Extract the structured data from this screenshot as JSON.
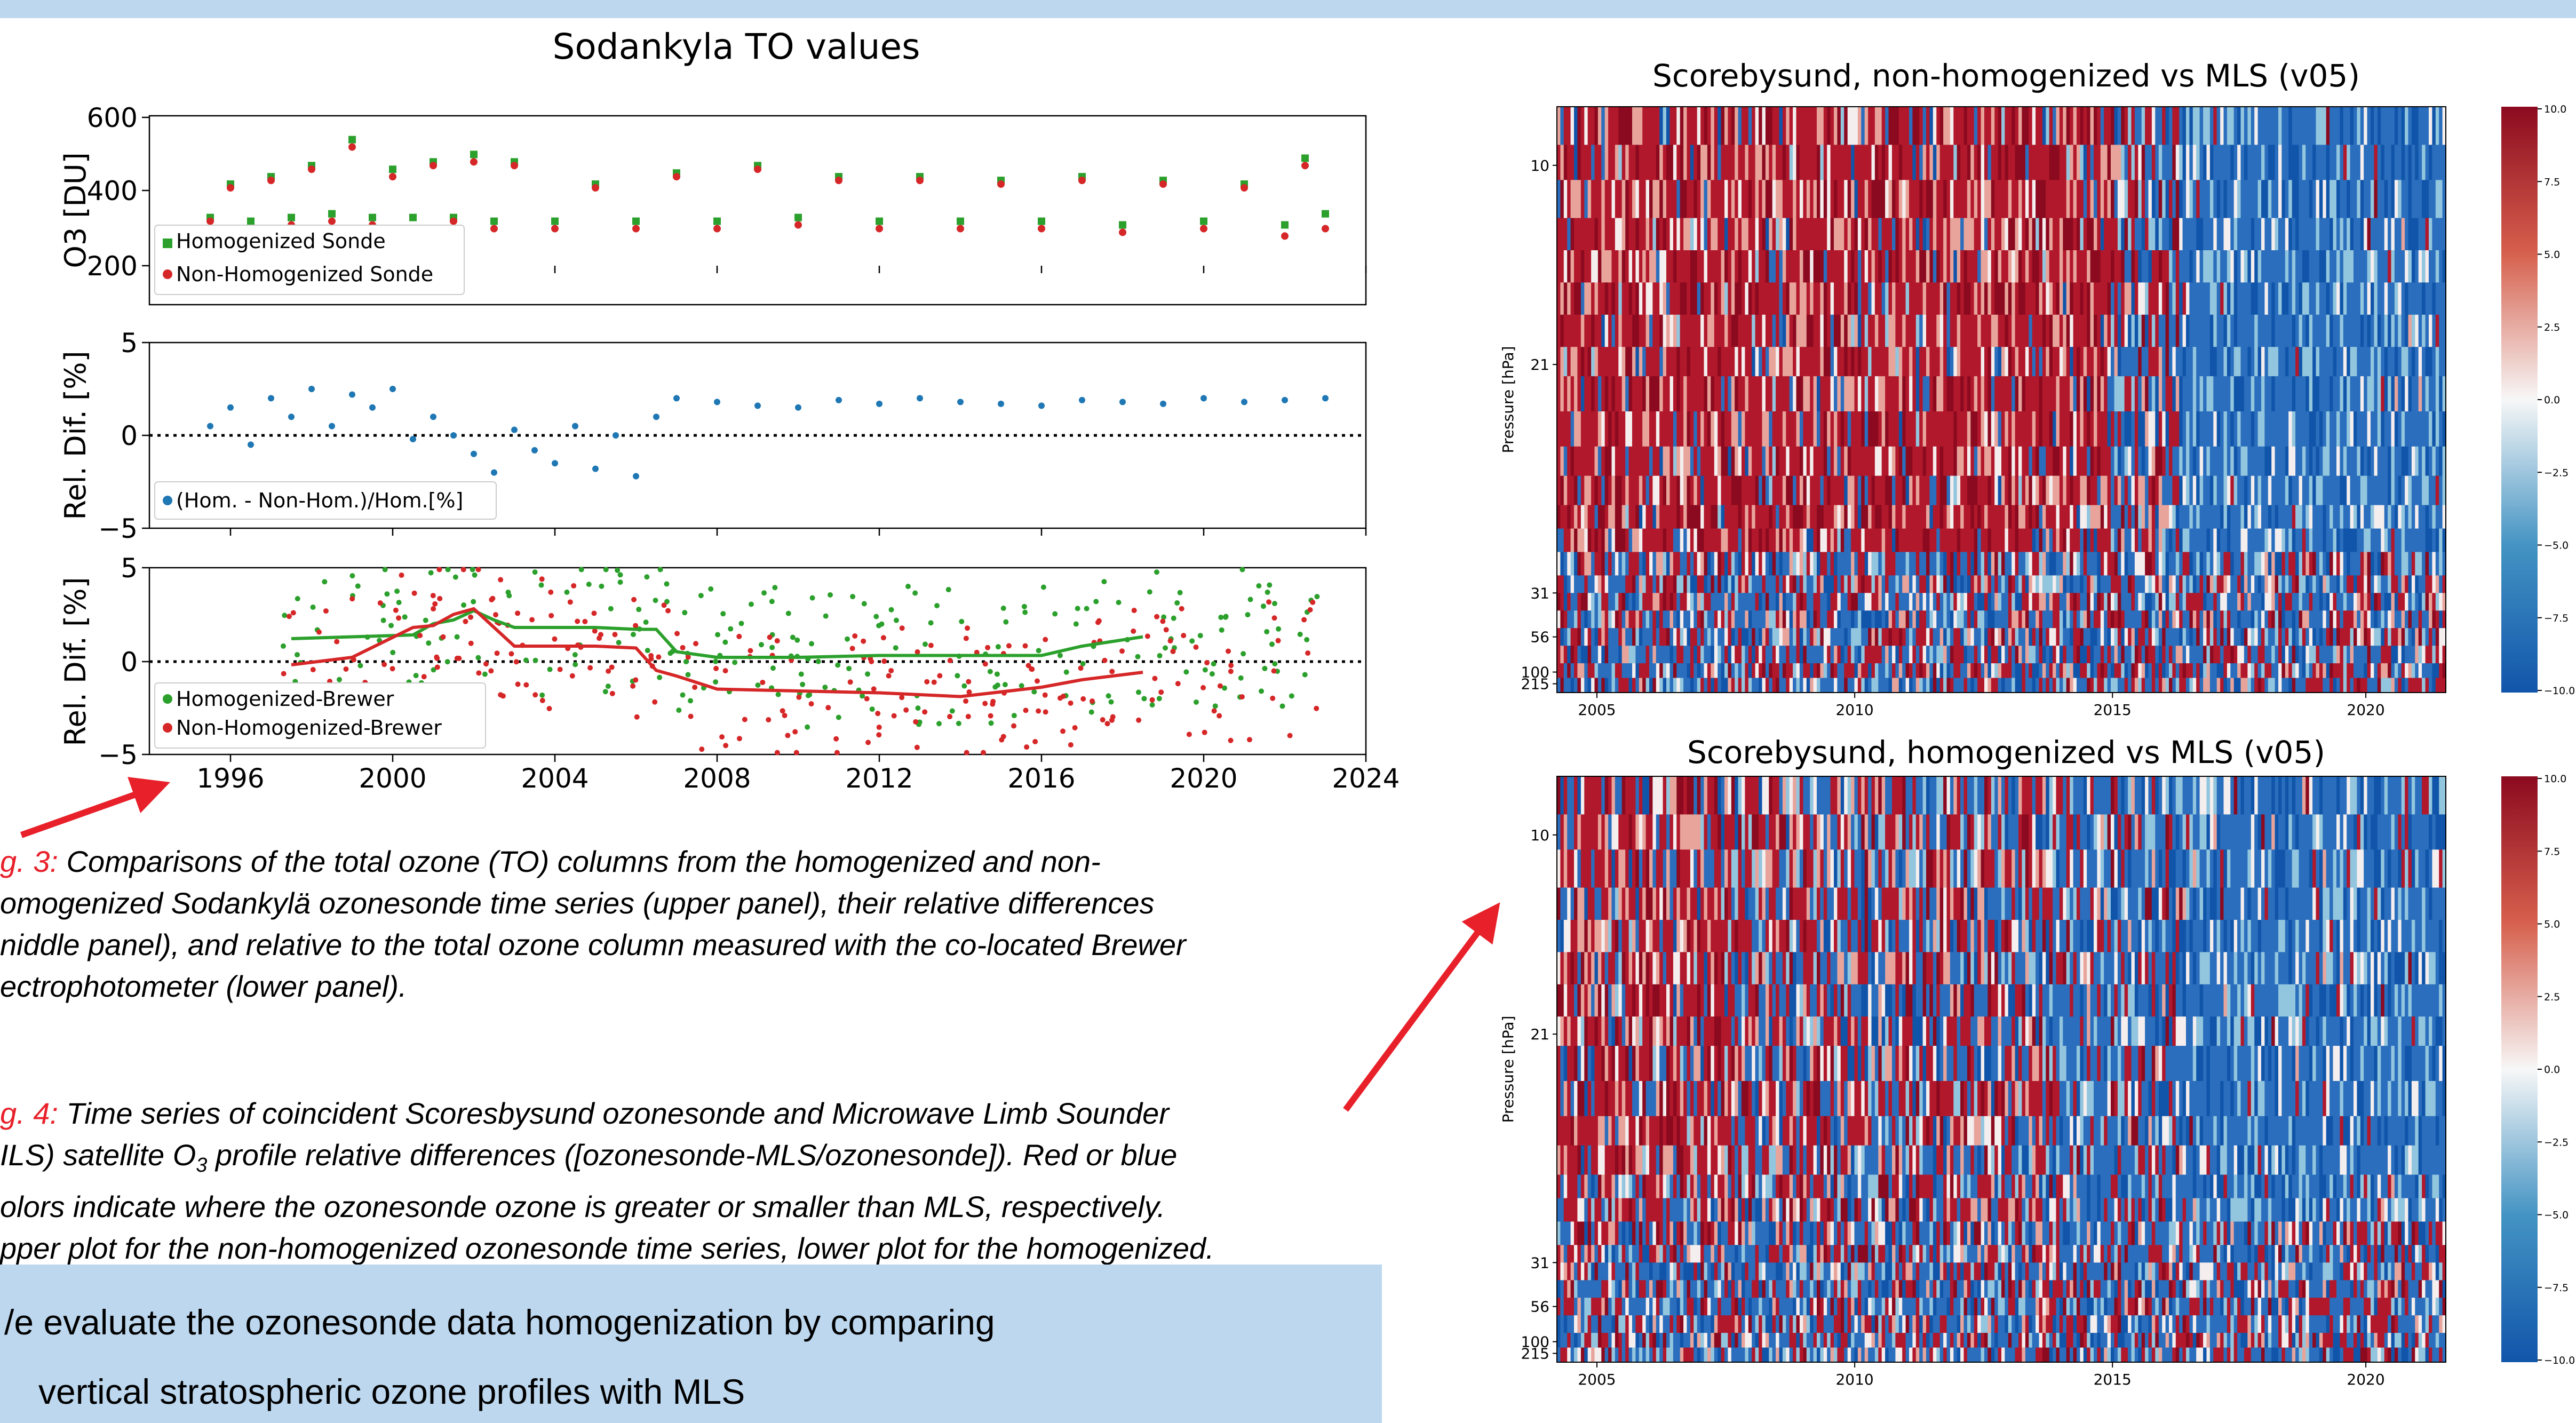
{
  "header_bar_color": "#bdd7ee",
  "left_figure": {
    "title": "Sodankyla TO values",
    "panels": [
      {
        "ylabel": "O3 [DU]",
        "yticks": [
          "600",
          "400",
          "200"
        ],
        "legend": [
          "Homogenized Sonde",
          "Non-Homogenized Sonde"
        ]
      },
      {
        "ylabel": "Rel. Dif. [%]",
        "yticks": [
          "5",
          "0",
          "−5"
        ],
        "legend": [
          "(Hom. - Non-Hom.)/Hom.[%]"
        ]
      },
      {
        "ylabel": "Rel. Dif. [%]",
        "yticks": [
          "5",
          "0",
          "−5"
        ],
        "legend": [
          "Homogenized-Brewer",
          "Non-Homogenized-Brewer"
        ]
      }
    ],
    "xticks": [
      "1996",
      "2000",
      "2004",
      "2008",
      "2012",
      "2016",
      "2020",
      "2024"
    ]
  },
  "chart_data": [
    {
      "type": "scatter",
      "title": "Sodankyla TO values",
      "ylabel": "O3 [DU]",
      "xlim": [
        1994.0,
        2024.0
      ],
      "ylim": [
        150,
        600
      ],
      "series": [
        {
          "name": "Homogenized Sonde",
          "color": "#2ca02c",
          "marker": "square",
          "x": [
            1995.5,
            1996.0,
            1996.5,
            1997.0,
            1997.5,
            1998.0,
            1998.5,
            1999.0,
            1999.5,
            2000.0,
            2000.5,
            2001.0,
            2001.5,
            2002.0,
            2002.5,
            2003.0,
            2004.0,
            2005.0,
            2006.0,
            2007.0,
            2008.0,
            2009.0,
            2010.0,
            2011.0,
            2012.0,
            2013.0,
            2014.0,
            2015.0,
            2016.0,
            2017.0,
            2018.0,
            2019.0,
            2020.0,
            2021.0,
            2022.0,
            2022.5,
            2023.0
          ],
          "y": [
            330,
            420,
            320,
            440,
            330,
            470,
            340,
            540,
            330,
            460,
            330,
            480,
            330,
            500,
            320,
            480,
            320,
            420,
            320,
            450,
            320,
            470,
            330,
            440,
            320,
            440,
            320,
            430,
            320,
            440,
            310,
            430,
            320,
            420,
            310,
            490,
            340
          ]
        },
        {
          "name": "Non-Homogenized Sonde",
          "color": "#d62728",
          "marker": "circle",
          "x": [
            1995.5,
            1996.0,
            1996.5,
            1997.0,
            1997.5,
            1998.0,
            1998.5,
            1999.0,
            1999.5,
            2000.0,
            2000.5,
            2001.0,
            2001.5,
            2002.0,
            2002.5,
            2003.0,
            2004.0,
            2005.0,
            2006.0,
            2007.0,
            2008.0,
            2009.0,
            2010.0,
            2011.0,
            2012.0,
            2013.0,
            2014.0,
            2015.0,
            2016.0,
            2017.0,
            2018.0,
            2019.0,
            2020.0,
            2021.0,
            2022.0,
            2022.5,
            2023.0
          ],
          "y": [
            320,
            410,
            300,
            430,
            310,
            460,
            320,
            520,
            310,
            440,
            300,
            470,
            320,
            480,
            300,
            470,
            300,
            410,
            300,
            440,
            300,
            460,
            310,
            430,
            300,
            430,
            300,
            420,
            300,
            430,
            290,
            420,
            300,
            410,
            280,
            470,
            300
          ]
        }
      ]
    },
    {
      "type": "scatter",
      "ylabel": "Rel. Dif. [%]",
      "xlim": [
        1994.0,
        2024.0
      ],
      "ylim": [
        -5,
        5
      ],
      "series": [
        {
          "name": "(Hom. - Non-Hom.)/Hom.[%]",
          "color": "#1f77b4",
          "x": [
            1995.5,
            1996.0,
            1996.5,
            1997.0,
            1997.5,
            1998.0,
            1998.5,
            1999.0,
            1999.5,
            2000.0,
            2000.5,
            2001.0,
            2001.5,
            2002.0,
            2002.5,
            2003.0,
            2003.5,
            2004.0,
            2004.5,
            2005.0,
            2005.5,
            2006.0,
            2006.5,
            2007.0,
            2008.0,
            2009.0,
            2010.0,
            2011.0,
            2012.0,
            2013.0,
            2014.0,
            2015.0,
            2016.0,
            2017.0,
            2018.0,
            2019.0,
            2020.0,
            2021.0,
            2022.0,
            2023.0
          ],
          "y": [
            0.5,
            1.5,
            -0.5,
            2.0,
            1.0,
            2.5,
            0.5,
            2.2,
            1.5,
            2.5,
            -0.2,
            1.0,
            0.0,
            -1.0,
            -2.0,
            0.3,
            -0.8,
            -1.5,
            0.5,
            -1.8,
            0.0,
            -2.2,
            1.0,
            2.0,
            1.8,
            1.6,
            1.5,
            1.9,
            1.7,
            2.0,
            1.8,
            1.7,
            1.6,
            1.9,
            1.8,
            1.7,
            2.0,
            1.8,
            1.9,
            2.0
          ]
        }
      ]
    },
    {
      "type": "line",
      "ylabel": "Rel. Dif. [%]",
      "xlim": [
        1994.0,
        2024.0
      ],
      "ylim": [
        -5,
        5
      ],
      "series": [
        {
          "name": "Homogenized-Brewer",
          "color": "#2ca02c",
          "x": [
            1997.5,
            1999.0,
            2000.5,
            2001.0,
            2001.5,
            2002.0,
            2002.5,
            2003.0,
            2004.0,
            2005.0,
            2006.0,
            2006.5,
            2007.0,
            2008.0,
            2010.0,
            2012.0,
            2014.0,
            2016.0,
            2017.0,
            2018.5
          ],
          "y": [
            1.2,
            1.3,
            1.4,
            2.0,
            2.2,
            2.7,
            2.2,
            1.8,
            1.8,
            1.8,
            1.7,
            1.7,
            0.5,
            0.2,
            0.2,
            0.3,
            0.3,
            0.3,
            0.8,
            1.3
          ]
        },
        {
          "name": "Non-Homogenized-Brewer",
          "color": "#d62728",
          "x": [
            1997.5,
            1999.0,
            2000.5,
            2001.0,
            2001.5,
            2002.0,
            2002.5,
            2003.0,
            2004.0,
            2005.0,
            2006.0,
            2006.5,
            2007.0,
            2008.0,
            2010.0,
            2012.0,
            2014.0,
            2016.0,
            2017.0,
            2018.5
          ],
          "y": [
            -0.2,
            0.2,
            1.8,
            1.9,
            2.5,
            2.8,
            1.8,
            0.8,
            0.8,
            0.8,
            0.7,
            -0.5,
            -0.8,
            -1.5,
            -1.6,
            -1.7,
            -1.9,
            -1.4,
            -1.0,
            -0.6
          ]
        }
      ]
    },
    {
      "type": "heatmap",
      "title": "Scorebysund, non-homogenized vs MLS (v05)",
      "ylabel": "Pressure [hPa]",
      "yticks": [
        "10",
        "21",
        "31",
        "56",
        "100",
        "215"
      ],
      "xticks": [
        "2005",
        "2010",
        "2015",
        "2020"
      ],
      "colorbar_ticks": [
        "10.0",
        "7.5",
        "5.0",
        "2.5",
        "0.0",
        "−2.5",
        "−5.0",
        "−7.5",
        "−10.0"
      ],
      "colormap": {
        "high": "#b2182b",
        "mid": "#f7f7f7",
        "low": "#2166ac"
      }
    },
    {
      "type": "heatmap",
      "title": "Scorebysund, homogenized vs MLS (v05)",
      "ylabel": "Pressure [hPa]",
      "yticks": [
        "10",
        "21",
        "31",
        "56",
        "100",
        "215"
      ],
      "xticks": [
        "2005",
        "2010",
        "2015",
        "2020"
      ],
      "colorbar_ticks": [
        "10.0",
        "7.5",
        "5.0",
        "2.5",
        "0.0",
        "−2.5",
        "−5.0",
        "−7.5",
        "−10.0"
      ],
      "colormap": {
        "high": "#b2182b",
        "mid": "#f7f7f7",
        "low": "#2166ac"
      }
    }
  ],
  "captions": {
    "fig3_label": "g. 3:",
    "fig3_lines": [
      " Comparisons of the total ozone (TO) columns from the homogenized and non-",
      "omogenized Sodankylä ozonesonde time series (upper panel), their relative differences",
      "niddle panel), and relative to the total ozone column measured with the co-located Brewer",
      "ectrophotometer (lower panel)."
    ],
    "fig4_label": "g. 4:",
    "fig4_lines": [
      " Time series of coincident Scoresbysund ozonesonde and Microwave Limb Sounder",
      "ILS) satellite O",
      "3",
      " profile relative differences ([ozonesonde-MLS/ozonesonde]). Red or blue",
      "olors indicate where the ozonesonde ozone is greater or smaller than MLS, respectively.",
      "pper plot for the non-homogenized ozonesonde time series, lower plot for the homogenized."
    ]
  },
  "summary_box": {
    "line1": "/e evaluate the ozonesonde data homogenization by comparing",
    "line2": "vertical stratospheric ozone profiles with MLS"
  },
  "colors": {
    "caption_label": "#e8202a",
    "arrow": "#e8202a",
    "box": "#bdd7ee"
  }
}
